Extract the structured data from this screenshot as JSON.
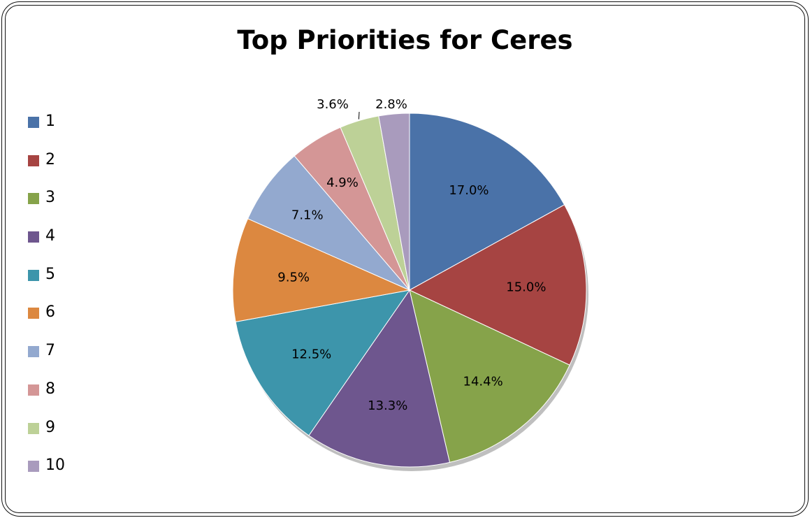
{
  "chart_data": {
    "type": "pie",
    "title": "Top Priorities for Ceres",
    "legend_position": "left",
    "slices": [
      {
        "name": "1",
        "label": "17.0%",
        "value": 17.0,
        "color": "#4A72A8"
      },
      {
        "name": "2",
        "label": "15.0%",
        "value": 15.0,
        "color": "#A64442"
      },
      {
        "name": "3",
        "label": "14.4%",
        "value": 14.4,
        "color": "#86A34A"
      },
      {
        "name": "4",
        "label": "13.3%",
        "value": 13.3,
        "color": "#6E568E"
      },
      {
        "name": "5",
        "label": "12.5%",
        "value": 12.5,
        "color": "#3D95AB"
      },
      {
        "name": "6",
        "label": "9.5%",
        "value": 9.5,
        "color": "#DC8840"
      },
      {
        "name": "7",
        "label": "7.1%",
        "value": 7.1,
        "color": "#93A9CF"
      },
      {
        "name": "8",
        "label": "4.9%",
        "value": 4.9,
        "color": "#D49696"
      },
      {
        "name": "9",
        "label": "3.6%",
        "value": 3.6,
        "color": "#BDD197"
      },
      {
        "name": "10",
        "label": "2.8%",
        "value": 2.8,
        "color": "#A99BBD"
      }
    ]
  }
}
